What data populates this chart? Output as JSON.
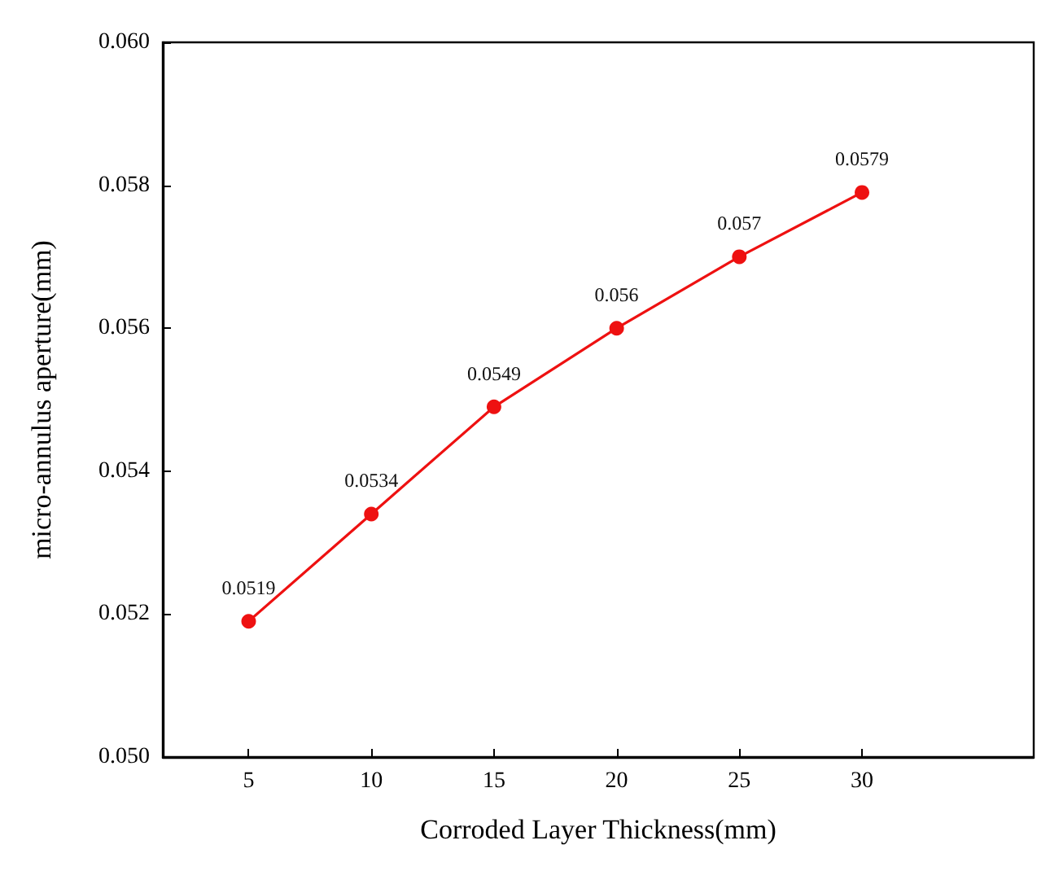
{
  "chart_data": {
    "type": "line",
    "xlabel": "Corroded Layer Thickness(mm)",
    "ylabel": "micro-annulus aperture(mm)",
    "x": [
      5,
      10,
      15,
      20,
      25,
      30
    ],
    "series": [
      {
        "color": "#ee1111",
        "values": [
          0.0519,
          0.0534,
          0.0549,
          0.056,
          0.057,
          0.0579
        ]
      }
    ],
    "xlim": [
      1.5,
      37
    ],
    "xticks": [
      5,
      10,
      15,
      20,
      25,
      30
    ],
    "ylim": [
      0.05,
      0.06
    ],
    "yticks": [
      {
        "value": 0.05,
        "label": "0.050"
      },
      {
        "value": 0.052,
        "label": "0.052"
      },
      {
        "value": 0.054,
        "label": "0.054"
      },
      {
        "value": 0.056,
        "label": "0.056"
      },
      {
        "value": 0.058,
        "label": "0.058"
      },
      {
        "value": 0.06,
        "label": "0.060"
      }
    ],
    "data_labels": true,
    "marker": "circle",
    "line_style": "solid",
    "grid": false
  }
}
